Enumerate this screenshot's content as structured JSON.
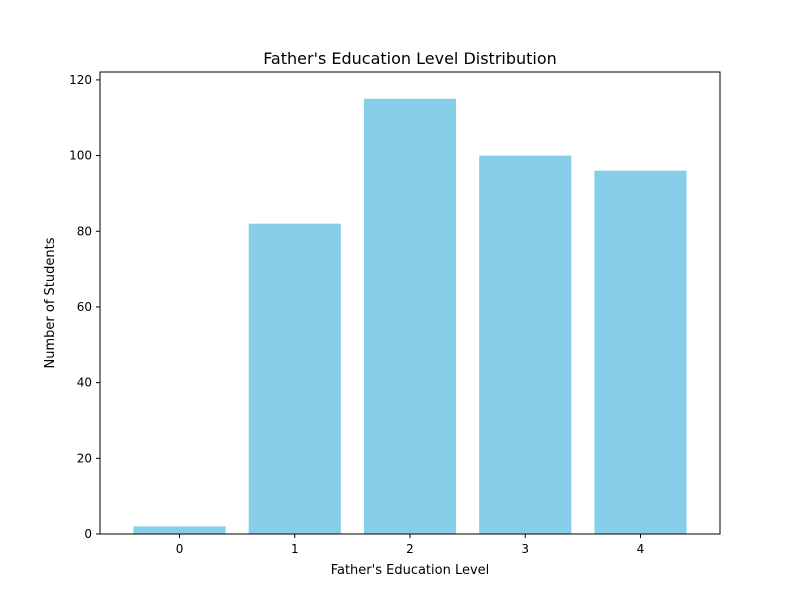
{
  "chart_data": {
    "type": "bar",
    "title": "Father's Education Level Distribution",
    "xlabel": "Father's Education Level",
    "ylabel": "Number of Students",
    "categories": [
      "0",
      "1",
      "2",
      "3",
      "4"
    ],
    "values": [
      2,
      82,
      115,
      100,
      96
    ],
    "ylim": [
      0,
      120
    ],
    "yticks": [
      "0",
      "20",
      "40",
      "60",
      "80",
      "100",
      "120"
    ],
    "grid": false,
    "bar_color": "#87CEEB"
  }
}
